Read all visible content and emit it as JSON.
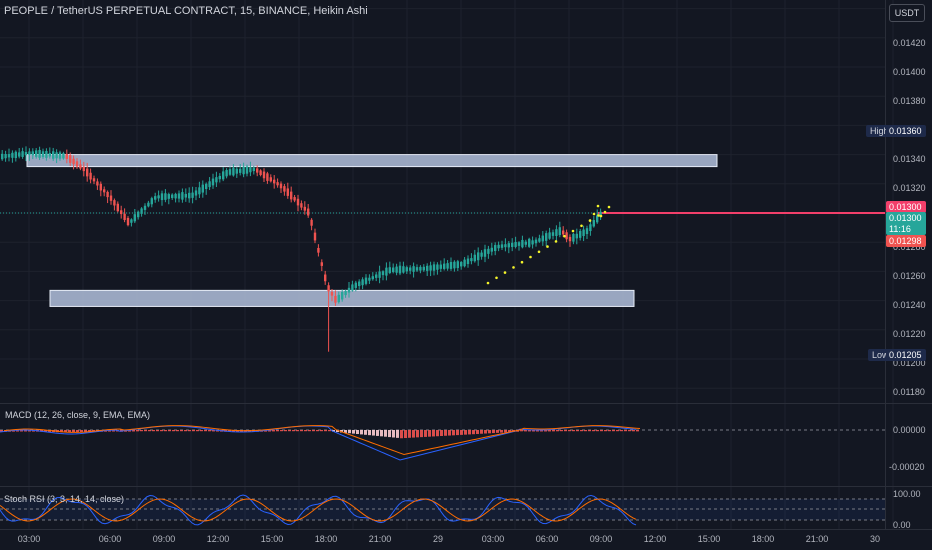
{
  "header": {
    "title": "PEOPLE / TetherUS PERPETUAL CONTRACT, 15, BINANCE, Heikin Ashi"
  },
  "currency": "USDT",
  "price_axis": [
    "0.01420",
    "0.01400",
    "0.01380",
    "0.01340",
    "0.01320",
    "0.01280",
    "0.01260",
    "0.01240",
    "0.01220",
    "0.01200",
    "0.01180"
  ],
  "tags": {
    "high_label": "High",
    "high_value": "0.01360",
    "low_label": "Low",
    "low_value": "0.01205",
    "level": "0.01300",
    "last": "0.01300",
    "countdown": "11:16",
    "prev": "0.01298"
  },
  "macd": {
    "label": "MACD (12, 26, close, 9, EMA, EMA)",
    "axis": [
      "0.00000",
      "-0.00020"
    ]
  },
  "stoch": {
    "label": "Stoch RSI (3, 3, 14, 14, close)",
    "axis": [
      "100.00",
      "0.00"
    ]
  },
  "time_axis": [
    "03:00",
    "06:00",
    "09:00",
    "12:00",
    "15:00",
    "18:00",
    "21:00",
    "29",
    "03:00",
    "06:00",
    "09:00",
    "12:00",
    "15:00",
    "18:00",
    "21:00",
    "30"
  ],
  "time_axis_edge": "8",
  "colors": {
    "bg": "#131722",
    "up": "#26a69a",
    "down": "#ef5350",
    "level": "#f23f6a",
    "zone": "#b2bfdc",
    "dots": "#f5f52a",
    "macd": "#2962ff",
    "signal": "#ff6d00"
  },
  "chart_data": {
    "type": "candlestick",
    "title": "PEOPLE / TetherUS PERPETUAL CONTRACT, 15, BINANCE, Heikin Ashi",
    "x_range": [
      "28 00:00",
      "30 00:00"
    ],
    "y_range": [
      0.0117,
      0.0143
    ],
    "high": 0.0136,
    "low": 0.01205,
    "last": 0.013,
    "horizontal_level": 0.013,
    "zones": [
      {
        "from": 0.01335,
        "to": 0.0134
      },
      {
        "from": 0.01236,
        "to": 0.01247
      }
    ],
    "price_path": [
      {
        "t": "28 00:00",
        "p": 0.0134
      },
      {
        "t": "28 01:00",
        "p": 0.01338
      },
      {
        "t": "28 03:00",
        "p": 0.01341
      },
      {
        "t": "28 05:00",
        "p": 0.01339
      },
      {
        "t": "28 06:00",
        "p": 0.0133
      },
      {
        "t": "28 07:30",
        "p": 0.0131
      },
      {
        "t": "28 08:30",
        "p": 0.01293
      },
      {
        "t": "28 10:00",
        "p": 0.01311
      },
      {
        "t": "28 12:00",
        "p": 0.01312
      },
      {
        "t": "28 14:00",
        "p": 0.01328
      },
      {
        "t": "28 15:30",
        "p": 0.0133
      },
      {
        "t": "28 17:00",
        "p": 0.01318
      },
      {
        "t": "28 18:30",
        "p": 0.013
      },
      {
        "t": "28 19:30",
        "p": 0.0125
      },
      {
        "t": "28 20:00",
        "p": 0.0124
      },
      {
        "t": "28 21:00",
        "p": 0.0125
      },
      {
        "t": "28 23:00",
        "p": 0.01261
      },
      {
        "t": "29 01:00",
        "p": 0.01262
      },
      {
        "t": "29 03:00",
        "p": 0.01265
      },
      {
        "t": "29 05:00",
        "p": 0.01277
      },
      {
        "t": "29 07:00",
        "p": 0.0128
      },
      {
        "t": "29 08:30",
        "p": 0.01288
      },
      {
        "t": "29 09:00",
        "p": 0.01282
      },
      {
        "t": "29 10:00",
        "p": 0.01288
      },
      {
        "t": "29 10:45",
        "p": 0.013
      }
    ],
    "wick_spikes": [
      {
        "t": "28 19:30",
        "low": 0.01205
      }
    ]
  }
}
